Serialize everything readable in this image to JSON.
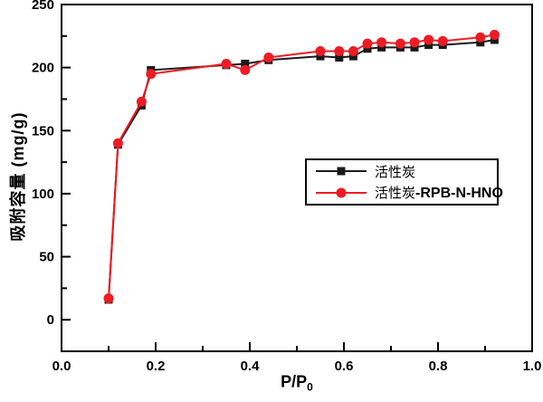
{
  "figure": {
    "background": "#ffffff",
    "axis_color": "#000000"
  },
  "chart_data": {
    "type": "line",
    "title": "",
    "xlabel": "P/P₀",
    "xlabel_base": "P/P",
    "xlabel_sub": "0",
    "ylabel": "吸附容量 (mg/g)",
    "xlim": [
      0.0,
      1.0
    ],
    "ylim": [
      -25,
      250
    ],
    "x_major_ticks": [
      0.0,
      0.2,
      0.4,
      0.6,
      0.8,
      1.0
    ],
    "x_tick_labels": [
      "0.0",
      "0.2",
      "0.4",
      "0.6",
      "0.8",
      "1.0"
    ],
    "x_minor_ticks": [
      0.1,
      0.3,
      0.5,
      0.7,
      0.9
    ],
    "y_major_ticks": [
      0,
      50,
      100,
      150,
      200,
      250
    ],
    "y_tick_labels": [
      "0",
      "50",
      "100",
      "150",
      "200",
      "250"
    ],
    "y_minor_ticks": [
      25,
      75,
      125,
      175,
      225
    ],
    "grid": false,
    "legend_position": "inside-right-center",
    "x": [
      0.1,
      0.12,
      0.17,
      0.19,
      0.35,
      0.39,
      0.44,
      0.55,
      0.59,
      0.62,
      0.65,
      0.68,
      0.72,
      0.75,
      0.78,
      0.81,
      0.89,
      0.92
    ],
    "series": [
      {
        "name": "活性炭",
        "marker": "square",
        "color": "#1a1a1a",
        "values": [
          16,
          139,
          170,
          198,
          202,
          203,
          206,
          209,
          208,
          209,
          215,
          216,
          216,
          216,
          218,
          218,
          220,
          222
        ]
      },
      {
        "name": "活性炭-RPB-N-HNO",
        "name_parts": {
          "cjk": "活性炭",
          "latin": "-RPB-N-HNO"
        },
        "marker": "circle",
        "color": "#ed1c24",
        "values": [
          17,
          140,
          173,
          195,
          203,
          198,
          208,
          213,
          213,
          213,
          219,
          220,
          219,
          220,
          222,
          221,
          224,
          226
        ]
      }
    ]
  }
}
